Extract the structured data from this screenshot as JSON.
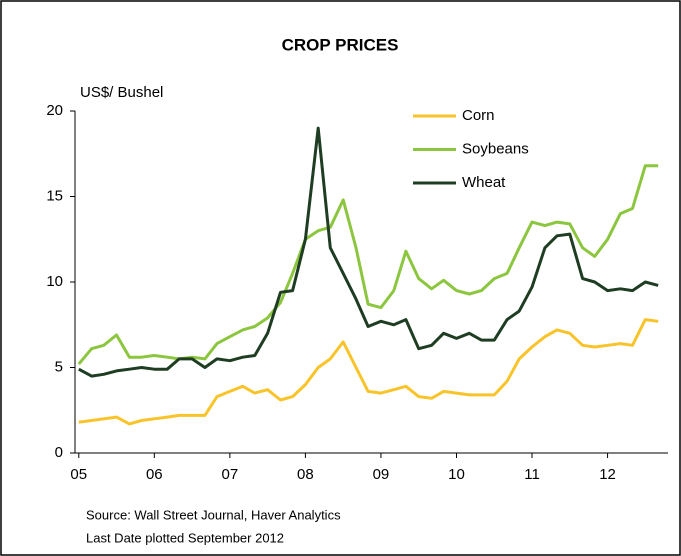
{
  "chart_data": {
    "type": "line",
    "title": "CROP PRICES",
    "y_label": "US$/ Bushel",
    "notes": [
      "Source: Wall Street Journal, Haver Analytics",
      "Last Date plotted  September 2012"
    ],
    "x": [
      2005,
      2005.17,
      2005.33,
      2005.5,
      2005.67,
      2005.83,
      2006,
      2006.17,
      2006.33,
      2006.5,
      2006.67,
      2006.83,
      2007,
      2007.17,
      2007.33,
      2007.5,
      2007.67,
      2007.83,
      2008,
      2008.17,
      2008.33,
      2008.5,
      2008.67,
      2008.83,
      2009,
      2009.17,
      2009.33,
      2009.5,
      2009.67,
      2009.83,
      2010,
      2010.17,
      2010.33,
      2010.5,
      2010.67,
      2010.83,
      2011,
      2011.17,
      2011.33,
      2011.5,
      2011.67,
      2011.83,
      2012,
      2012.17,
      2012.33,
      2012.5,
      2012.67
    ],
    "series": [
      {
        "name": "Corn",
        "color": "#f9c32a",
        "values": [
          1.8,
          1.9,
          2.0,
          2.1,
          1.7,
          1.9,
          2.0,
          2.1,
          2.2,
          2.2,
          2.2,
          3.3,
          3.6,
          3.9,
          3.5,
          3.7,
          3.1,
          3.3,
          4.0,
          5.0,
          5.5,
          6.5,
          5.0,
          3.6,
          3.5,
          3.7,
          3.9,
          3.3,
          3.2,
          3.6,
          3.5,
          3.4,
          3.4,
          3.4,
          4.2,
          5.5,
          6.2,
          6.8,
          7.2,
          7.0,
          6.3,
          6.2,
          6.3,
          6.4,
          6.3,
          7.8,
          7.7
        ]
      },
      {
        "name": "Soybeans",
        "color": "#8cc63f",
        "values": [
          5.2,
          6.1,
          6.3,
          6.9,
          5.6,
          5.6,
          5.7,
          5.6,
          5.5,
          5.6,
          5.5,
          6.4,
          6.8,
          7.2,
          7.4,
          7.9,
          8.8,
          10.5,
          12.5,
          13.0,
          13.2,
          14.8,
          12.0,
          8.7,
          8.5,
          9.5,
          11.8,
          10.2,
          9.6,
          10.1,
          9.5,
          9.3,
          9.5,
          10.2,
          10.5,
          12.0,
          13.5,
          13.3,
          13.5,
          13.4,
          12.0,
          11.5,
          12.5,
          14.0,
          14.3,
          16.8,
          16.8
        ]
      },
      {
        "name": "Wheat",
        "color": "#1e3d22",
        "values": [
          4.9,
          4.5,
          4.6,
          4.8,
          4.9,
          5.0,
          4.9,
          4.9,
          5.5,
          5.5,
          5.0,
          5.5,
          5.4,
          5.6,
          5.7,
          7.0,
          9.4,
          9.5,
          12.5,
          19.0,
          12.0,
          10.5,
          9.0,
          7.4,
          7.7,
          7.5,
          7.8,
          6.1,
          6.3,
          7.0,
          6.7,
          7.0,
          6.6,
          6.6,
          7.8,
          8.3,
          9.7,
          12.0,
          12.7,
          12.8,
          10.2,
          10.0,
          9.5,
          9.6,
          9.5,
          10.0,
          9.8
        ]
      }
    ],
    "xlim": [
      2004.95,
      2012.8
    ],
    "xticks": [
      {
        "value": 2005,
        "label": "05"
      },
      {
        "value": 2006,
        "label": "06"
      },
      {
        "value": 2007,
        "label": "07"
      },
      {
        "value": 2008,
        "label": "08"
      },
      {
        "value": 2009,
        "label": "09"
      },
      {
        "value": 2010,
        "label": "10"
      },
      {
        "value": 2011,
        "label": "11"
      },
      {
        "value": 2012,
        "label": "12"
      }
    ],
    "ylim": [
      0,
      20
    ],
    "yticks": [
      0,
      5,
      10,
      15,
      20
    ],
    "legend": "upper right"
  }
}
